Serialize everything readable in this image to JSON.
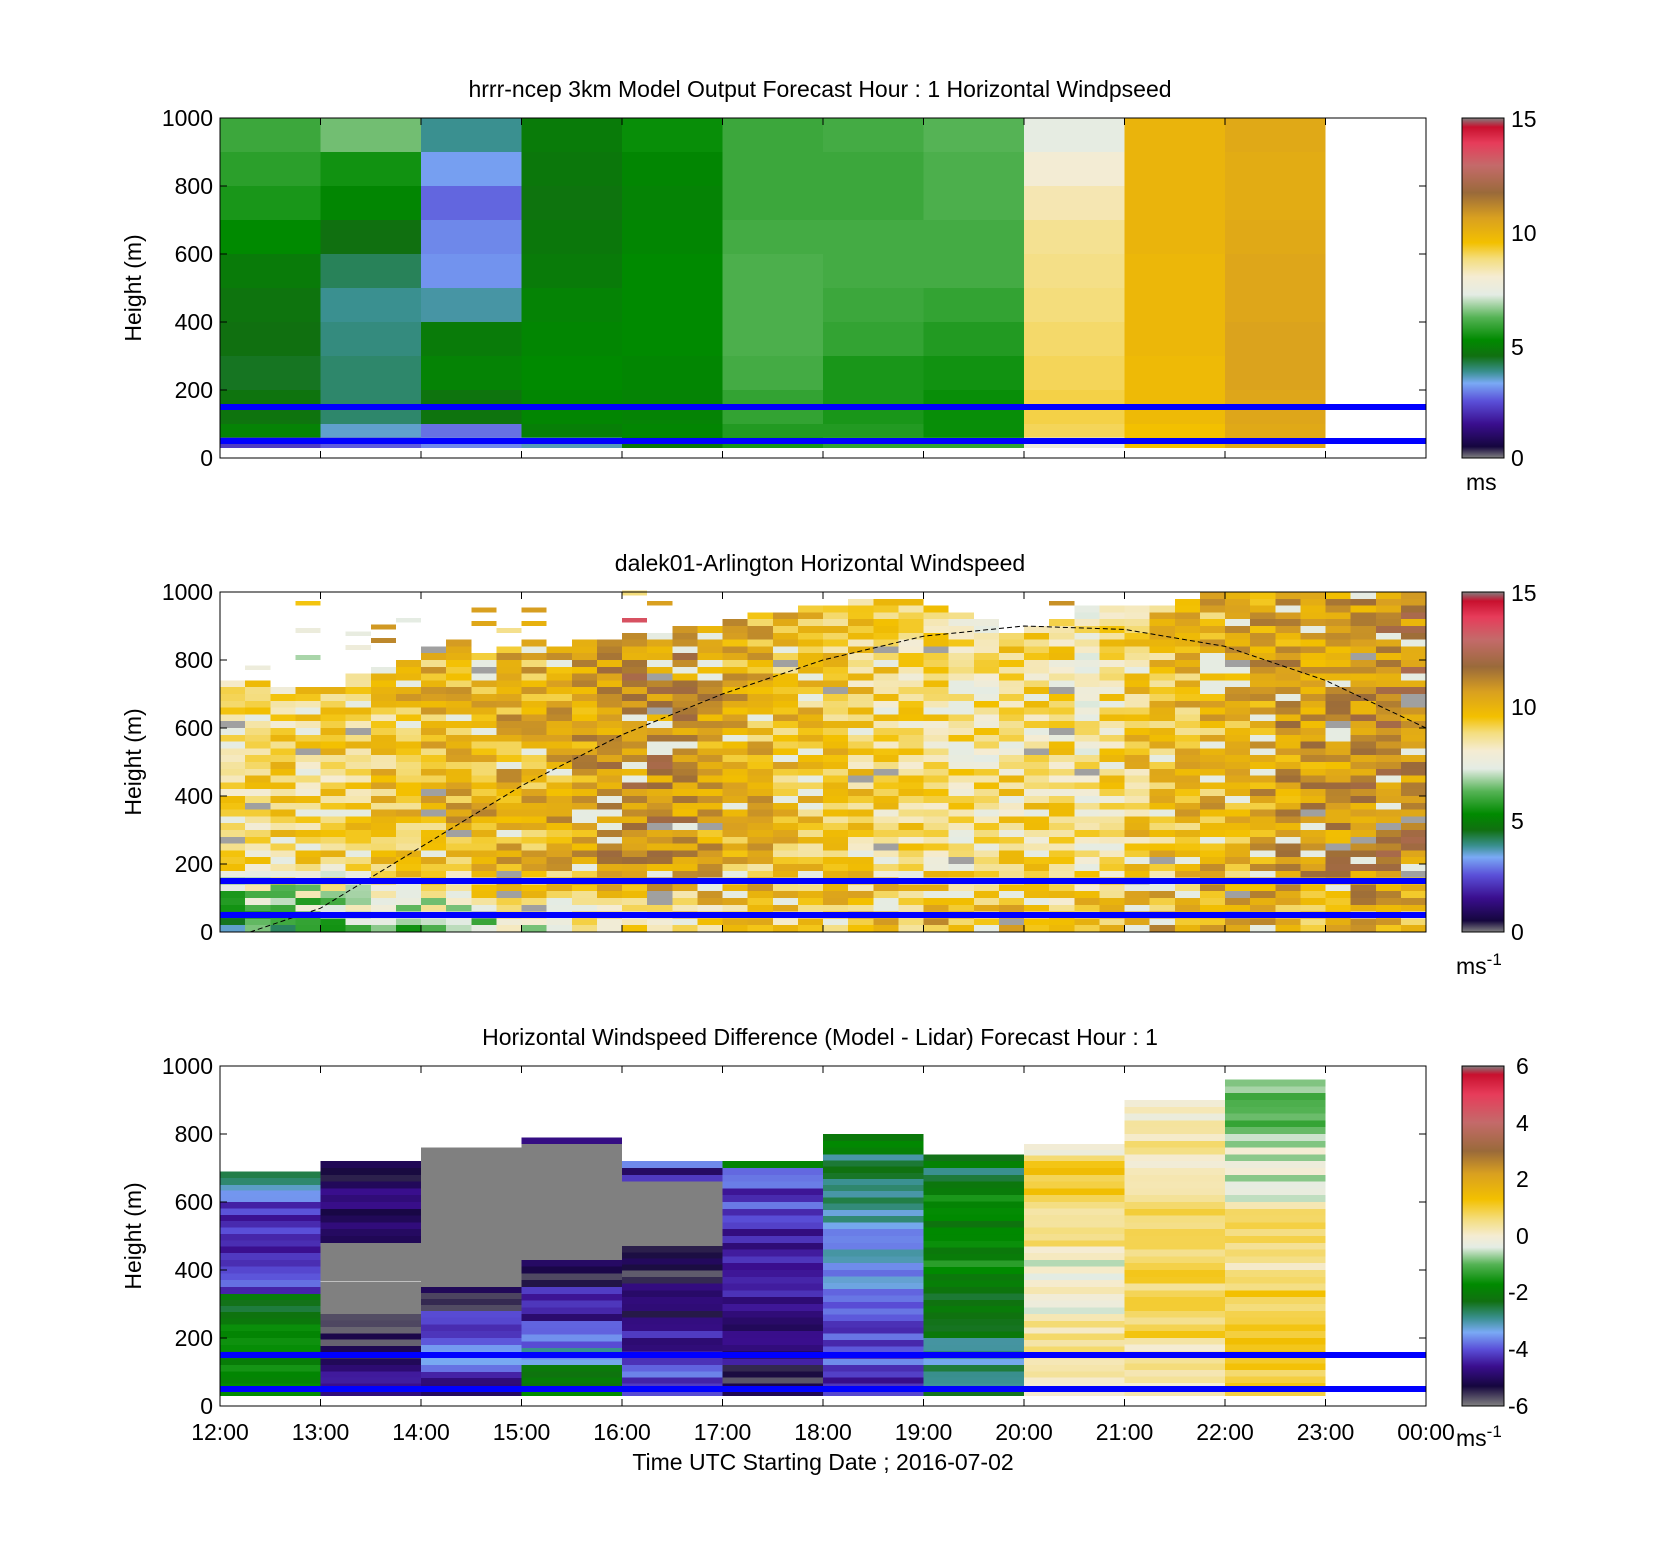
{
  "colors": {
    "overlay_lines": "#0000ff",
    "terminator_line": "#000000",
    "missing": "#ffffff"
  },
  "colormaps": {
    "speed": [
      [
        0,
        "#808080"
      ],
      [
        0.5,
        "#15063e"
      ],
      [
        1.5,
        "#3a0e8e"
      ],
      [
        2.5,
        "#5a4fd8"
      ],
      [
        3.3,
        "#7aaaf5"
      ],
      [
        3.8,
        "#3a9090"
      ],
      [
        4.5,
        "#107010"
      ],
      [
        5.2,
        "#008a00"
      ],
      [
        6.2,
        "#55b355"
      ],
      [
        7.2,
        "#e4ece4"
      ],
      [
        8.0,
        "#f5ecd2"
      ],
      [
        8.8,
        "#f4dd7c"
      ],
      [
        9.5,
        "#f3c000"
      ],
      [
        10.6,
        "#d9a020"
      ],
      [
        11.7,
        "#9a6a3a"
      ],
      [
        12.9,
        "#c46a6a"
      ],
      [
        13.9,
        "#e73c5a"
      ],
      [
        14.6,
        "#c8102e"
      ],
      [
        15,
        "#808080"
      ]
    ],
    "diff": [
      [
        -6,
        "#808080"
      ],
      [
        -5.3,
        "#15063e"
      ],
      [
        -4.6,
        "#3a0e8e"
      ],
      [
        -4.0,
        "#5a4fd8"
      ],
      [
        -3.4,
        "#7aaaf5"
      ],
      [
        -2.9,
        "#3a9090"
      ],
      [
        -2.3,
        "#107010"
      ],
      [
        -1.7,
        "#008a00"
      ],
      [
        -1.0,
        "#55b355"
      ],
      [
        -0.4,
        "#e4ece4"
      ],
      [
        0,
        "#f5ecd2"
      ],
      [
        0.6,
        "#f4dd7c"
      ],
      [
        1.3,
        "#f3c000"
      ],
      [
        2.2,
        "#d9a020"
      ],
      [
        3.0,
        "#9a6a3a"
      ],
      [
        4.0,
        "#c46a6a"
      ],
      [
        5.0,
        "#e73c5a"
      ],
      [
        5.7,
        "#c8102e"
      ],
      [
        6,
        "#808080"
      ]
    ]
  },
  "chart_data": [
    {
      "type": "heatmap",
      "title": "hrrr-ncep 3km Model Output   Forecast Hour : 1 Horizontal Windpseed",
      "ylabel": "Height (m)",
      "ylim": [
        0,
        1000
      ],
      "yticks": [
        "0",
        "200",
        "400",
        "600",
        "800",
        "1000"
      ],
      "x_range_hours": [
        12,
        24
      ],
      "xticks": [
        "12:00",
        "13:00",
        "14:00",
        "15:00",
        "16:00",
        "17:00",
        "18:00",
        "19:00",
        "20:00",
        "21:00",
        "22:00",
        "23:00",
        "00:00"
      ],
      "colorbar": {
        "map": "speed",
        "ticks": [
          "0",
          "5",
          "10",
          "15"
        ],
        "range": [
          0,
          15
        ],
        "unit": "ms"
      },
      "overlay_heights_m": [
        150,
        50
      ],
      "cells": {
        "x_start_hour": 12,
        "x_step_hour": 1,
        "y_bottom_m": 30,
        "y_edges_m": [
          30,
          60,
          100,
          200,
          300,
          400,
          500,
          600,
          700,
          800,
          900,
          1000
        ],
        "columns": [
          [
            2.2,
            5.0,
            4.6,
            4.4,
            4.5,
            4.6,
            4.8,
            5.2,
            5.5,
            5.7,
            5.9
          ],
          [
            2.6,
            3.5,
            4.0,
            4.0,
            3.9,
            3.8,
            4.1,
            4.5,
            5.1,
            5.4,
            6.4
          ],
          [
            3.0,
            2.8,
            4.6,
            5.0,
            4.8,
            3.7,
            3.1,
            3.0,
            2.7,
            3.2,
            3.8
          ],
          [
            3.6,
            4.9,
            5.1,
            5.2,
            5.1,
            5.0,
            4.8,
            4.7,
            4.6,
            4.7,
            4.8
          ],
          [
            4.7,
            5.1,
            5.0,
            5.1,
            5.2,
            5.2,
            5.2,
            5.1,
            5.0,
            5.1,
            5.3
          ],
          [
            5.5,
            5.6,
            5.8,
            6.0,
            6.1,
            6.1,
            6.1,
            6.0,
            5.9,
            5.9,
            5.9
          ],
          [
            5.8,
            5.6,
            5.5,
            5.5,
            5.8,
            5.9,
            6.0,
            6.0,
            5.9,
            5.9,
            6.0
          ],
          [
            5.8,
            5.3,
            5.3,
            5.4,
            5.6,
            5.8,
            6.0,
            6.0,
            6.1,
            6.1,
            6.2
          ],
          [
            7.5,
            9.0,
            9.1,
            9.0,
            8.9,
            8.8,
            8.7,
            8.6,
            8.3,
            7.9,
            7.3
          ],
          [
            9.5,
            9.5,
            9.7,
            9.7,
            9.8,
            9.8,
            9.8,
            9.9,
            9.9,
            9.9,
            9.9
          ],
          [
            10.3,
            10.3,
            10.4,
            10.5,
            10.5,
            10.4,
            10.4,
            10.3,
            10.2,
            10.2,
            10.3
          ]
        ]
      }
    },
    {
      "type": "heatmap",
      "title": "dalek01-Arlington  Horizontal Windspeed",
      "ylabel": "Height (m)",
      "ylim": [
        0,
        1000
      ],
      "yticks": [
        "0",
        "200",
        "400",
        "600",
        "800",
        "1000"
      ],
      "x_range_hours": [
        12,
        24
      ],
      "colorbar": {
        "map": "speed",
        "ticks": [
          "0",
          "5",
          "10",
          "15"
        ],
        "range": [
          0,
          15
        ],
        "unit": "ms",
        "unit_exponent": "-1"
      },
      "overlay_heights_m": [
        150,
        50
      ],
      "terminator_curve": {
        "x_hours": [
          12.3,
          13,
          14,
          15,
          16,
          17,
          18,
          19,
          20,
          21,
          22,
          23,
          24
        ],
        "y_m": [
          0,
          70,
          250,
          430,
          580,
          700,
          800,
          870,
          900,
          890,
          840,
          740,
          600
        ]
      },
      "profiles": {
        "x_start_hour": 12,
        "x_step_hour": 0.25,
        "bin_m": 20,
        "tops_m": [
          730,
          730,
          720,
          720,
          720,
          750,
          770,
          790,
          830,
          860,
          820,
          840,
          860,
          840,
          860,
          860,
          870,
          880,
          900,
          900,
          910,
          930,
          940,
          950,
          960,
          980,
          980,
          970,
          960,
          940,
          920,
          880,
          900,
          920,
          950,
          960,
          960,
          960,
          980,
          990,
          1000,
          1000,
          1000,
          1000,
          1000,
          1000,
          1000,
          1000
        ],
        "base_speed": [
          8.7,
          8.9,
          9.0,
          9.1,
          9.2,
          9.4,
          9.5,
          9.7,
          9.8,
          10.0,
          10.1,
          10.2,
          10.0,
          10.2,
          10.5,
          10.8,
          11.0,
          11.0,
          10.8,
          10.5,
          10.2,
          10.0,
          9.8,
          9.6,
          9.4,
          9.2,
          9.0,
          8.8,
          8.6,
          8.5,
          8.5,
          8.8,
          9.0,
          8.7,
          8.4,
          8.8,
          9.4,
          9.6,
          9.8,
          10.0,
          10.2,
          10.4,
          10.6,
          10.7,
          10.8,
          10.9,
          11.0,
          11.1
        ],
        "near_surface_speed": [
          5.0,
          5.2,
          5.4,
          5.6,
          5.8,
          6.0,
          6.2,
          6.4,
          6.6,
          6.8,
          7.0,
          7.2,
          7.4,
          7.6,
          7.8,
          8.0,
          8.2,
          8.4,
          8.6,
          8.8,
          9.0,
          9.2,
          9.4,
          9.6,
          9.8,
          10.0,
          10.0,
          10.0,
          10.0,
          10.0,
          10.0,
          10.0,
          10.0,
          10.0,
          10.0,
          10.0,
          10.0,
          10.0,
          10.0,
          10.0,
          10.0,
          10.0,
          10.0,
          10.0,
          10.0,
          10.0,
          10.0,
          10.0
        ]
      }
    },
    {
      "type": "heatmap",
      "title": "Horizontal Windspeed Difference (Model - Lidar) Forecast Hour : 1",
      "ylabel": "Height (m)",
      "ylim": [
        0,
        1000
      ],
      "yticks": [
        "0",
        "200",
        "400",
        "600",
        "800",
        "1000"
      ],
      "x_range_hours": [
        12,
        24
      ],
      "xticks": [
        "12:00",
        "13:00",
        "14:00",
        "15:00",
        "16:00",
        "17:00",
        "18:00",
        "19:00",
        "20:00",
        "21:00",
        "22:00",
        "23:00",
        "00:00"
      ],
      "xlabel": "Time UTC  Starting Date ; 2016-07-02",
      "colorbar": {
        "map": "diff",
        "ticks": [
          "-6",
          "-4",
          "-2",
          "0",
          "2",
          "4",
          "6"
        ],
        "range": [
          -6,
          6
        ],
        "unit": "ms",
        "unit_exponent": "-1"
      },
      "overlay_heights_m": [
        150,
        50
      ],
      "hour_blocks": [
        {
          "top_m": 690,
          "segments": [
            [
              30,
              120,
              -1.5
            ],
            [
              120,
              240,
              -2.0
            ],
            [
              240,
              330,
              -2.2
            ],
            [
              330,
              450,
              -4.0
            ],
            [
              450,
              600,
              -4.3
            ],
            [
              600,
              650,
              -3.6
            ],
            [
              650,
              690,
              -2.7
            ]
          ]
        },
        {
          "top_m": 720,
          "segments": [
            [
              30,
              120,
              -4.7
            ],
            [
              120,
              270,
              -5.5
            ],
            [
              270,
              480,
              -6.0
            ],
            [
              480,
              720,
              -5.0
            ]
          ]
        },
        {
          "top_m": 760,
          "segments": [
            [
              30,
              100,
              -4.6
            ],
            [
              100,
              200,
              -3.6
            ],
            [
              200,
              280,
              -4.3
            ],
            [
              280,
              350,
              -5.3
            ],
            [
              350,
              760,
              -6.0
            ]
          ]
        },
        {
          "top_m": 790,
          "segments": [
            [
              30,
              120,
              -2.0
            ],
            [
              120,
              170,
              -3.3
            ],
            [
              170,
              250,
              -4.0
            ],
            [
              250,
              350,
              -4.6
            ],
            [
              350,
              430,
              -5.3
            ],
            [
              430,
              770,
              -6.0
            ],
            [
              770,
              790,
              -5.0
            ]
          ]
        },
        {
          "top_m": 720,
          "segments": [
            [
              30,
              120,
              -4.0
            ],
            [
              120,
              260,
              -4.6
            ],
            [
              260,
              380,
              -5.1
            ],
            [
              380,
              470,
              -5.4
            ],
            [
              470,
              660,
              -6.0
            ],
            [
              660,
              700,
              -4.6
            ],
            [
              700,
              720,
              -3.8
            ]
          ]
        },
        {
          "top_m": 720,
          "segments": [
            [
              30,
              120,
              -5.5
            ],
            [
              120,
              300,
              -4.8
            ],
            [
              300,
              540,
              -4.4
            ],
            [
              540,
              700,
              -4.1
            ],
            [
              700,
              720,
              -2.0
            ]
          ]
        },
        {
          "top_m": 800,
          "segments": [
            [
              30,
              120,
              -4.2
            ],
            [
              120,
              250,
              -4.0
            ],
            [
              250,
              400,
              -3.6
            ],
            [
              400,
              540,
              -3.4
            ],
            [
              540,
              650,
              -3.0
            ],
            [
              650,
              740,
              -2.7
            ],
            [
              740,
              800,
              -2.0
            ]
          ]
        },
        {
          "top_m": 740,
          "segments": [
            [
              30,
              120,
              -2.6
            ],
            [
              120,
              200,
              -3.0
            ],
            [
              200,
              350,
              -2.3
            ],
            [
              350,
              660,
              -1.8
            ],
            [
              660,
              700,
              -2.8
            ],
            [
              700,
              740,
              -2.0
            ]
          ]
        },
        {
          "top_m": 770,
          "segments": [
            [
              30,
              120,
              0.4
            ],
            [
              120,
              250,
              0.5
            ],
            [
              250,
              450,
              -0.2
            ],
            [
              450,
              600,
              0.4
            ],
            [
              600,
              720,
              1.2
            ],
            [
              720,
              770,
              0.2
            ]
          ]
        },
        {
          "top_m": 900,
          "segments": [
            [
              30,
              200,
              0.3
            ],
            [
              200,
              400,
              0.8
            ],
            [
              400,
              600,
              0.6
            ],
            [
              600,
              800,
              0.3
            ],
            [
              800,
              900,
              0.2
            ]
          ]
        },
        {
          "top_m": 960,
          "segments": [
            [
              30,
              200,
              1.0
            ],
            [
              200,
              400,
              0.9
            ],
            [
              400,
              600,
              0.5
            ],
            [
              600,
              800,
              -0.4
            ],
            [
              800,
              960,
              -0.9
            ]
          ]
        }
      ]
    }
  ]
}
